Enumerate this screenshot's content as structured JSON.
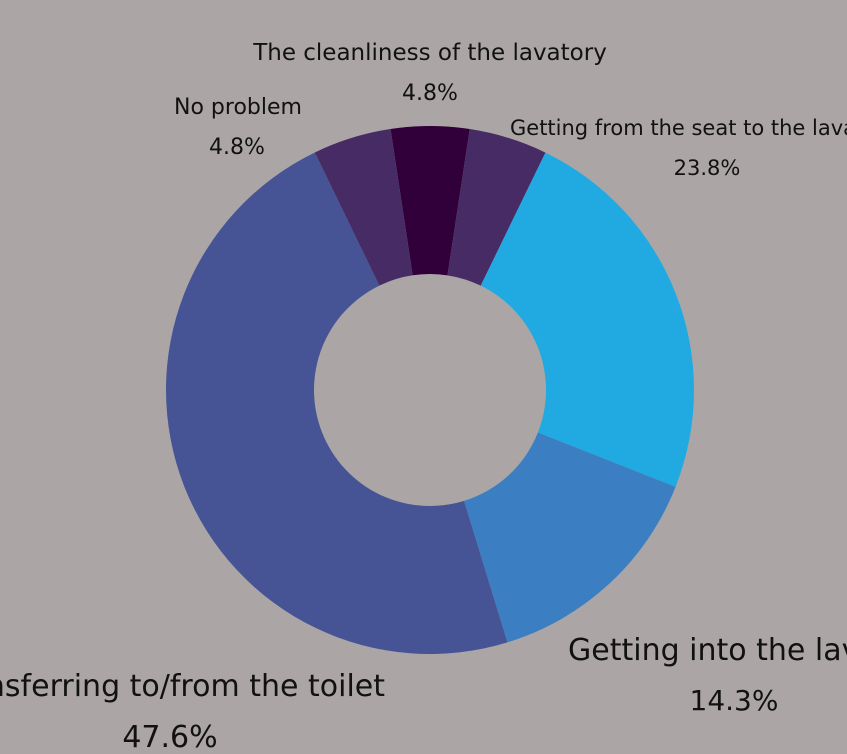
{
  "chart_data": {
    "type": "pie",
    "donut": true,
    "background": "#aba6a5",
    "slices": [
      {
        "label": "The cleanliness of the lavatory",
        "value": 4.8,
        "display": "4.8%",
        "color": "#31003a"
      },
      {
        "label": "Getting from the seat to the lavatory",
        "value": 4.8,
        "display": "",
        "color": "#472b64"
      },
      {
        "label": "Getting from the seat to the lavatory",
        "value": 23.8,
        "display": "23.8%",
        "color": "#21aae2"
      },
      {
        "label": "Getting into the lavatory",
        "value": 14.3,
        "display": "14.3%",
        "color": "#3b7fc2"
      },
      {
        "label": "Transferring to/from the toilet",
        "value": 47.6,
        "display": "47.6%",
        "color": "#465496"
      },
      {
        "label": "No problem",
        "value": 4.8,
        "display": "4.8%",
        "color": "#472b64"
      }
    ]
  },
  "labels": {
    "cleanliness": {
      "name": "The cleanliness of the lavatory",
      "pct": "4.8%"
    },
    "no_problem": {
      "name": "No problem",
      "pct": "4.8%"
    },
    "seat": {
      "name": "Getting from the seat to the lavatory",
      "pct": "23.8%"
    },
    "into": {
      "name": "Getting into the lavatory",
      "pct": "14.3%"
    },
    "transfer": {
      "name": "Transferring to/from the toilet",
      "pct": "47.6%"
    }
  }
}
